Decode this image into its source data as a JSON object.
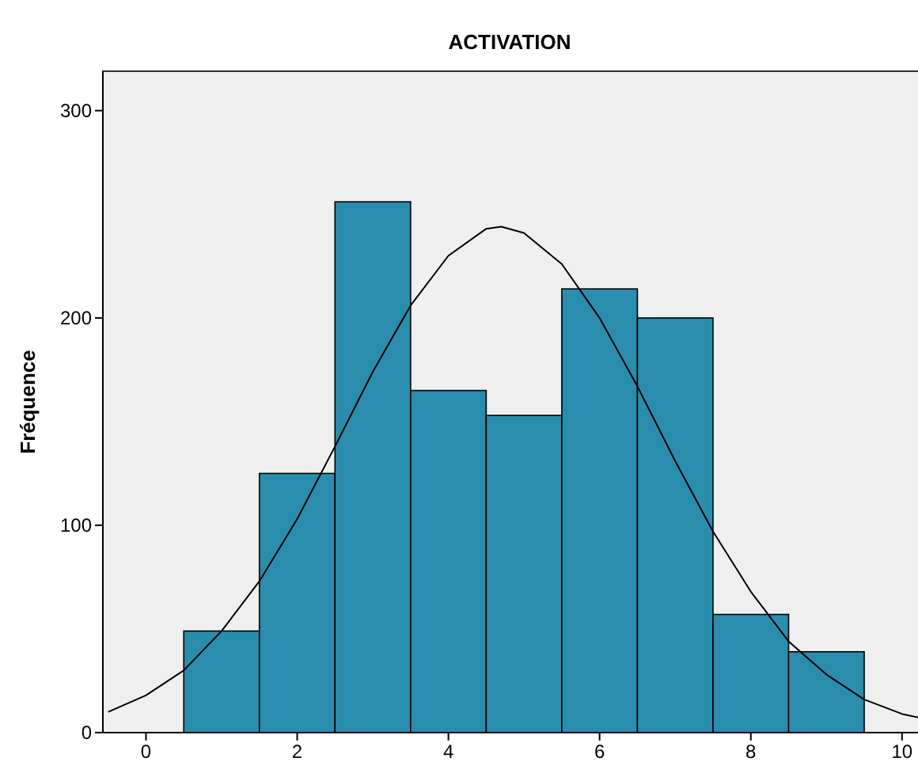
{
  "chart_data": {
    "type": "histogram",
    "title": "ACTIVATION",
    "ylabel": "Fréquence",
    "bins": [
      0.5,
      1.5,
      2.5,
      3.5,
      4.5,
      5.5,
      6.5,
      7.5,
      8.5,
      9.5
    ],
    "values": [
      49,
      125,
      256,
      165,
      153,
      214,
      200,
      57,
      39
    ],
    "color": "#2a8dad",
    "series": [
      {
        "type": "line",
        "color": "#000000",
        "x": [
          -0.5,
          0,
          0.5,
          1,
          1.5,
          2,
          2.5,
          3,
          3.5,
          4,
          4.5,
          4.7,
          5,
          5.5,
          6,
          6.5,
          7,
          7.5,
          8,
          8.5,
          9,
          9.5,
          10,
          10.5
        ],
        "values": [
          10,
          18,
          30,
          49,
          73,
          103,
          138,
          174,
          206,
          230,
          243,
          244,
          241,
          226,
          200,
          167,
          131,
          97,
          68,
          44,
          28,
          16,
          9,
          5
        ]
      }
    ],
    "xlim": [
      -0.57,
      10.63
    ],
    "xticks": [
      0,
      2,
      4,
      6,
      8,
      10
    ],
    "ylim": [
      0,
      319
    ],
    "yticks": [
      0,
      100,
      200,
      300
    ],
    "grid": false
  }
}
